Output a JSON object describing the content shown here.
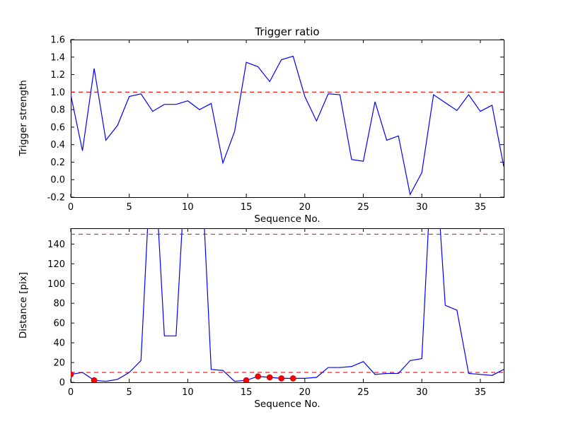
{
  "figure": {
    "background": "#ffffff",
    "colors": {
      "line": "#0000ff",
      "threshold": "#ff0000",
      "marker": "#ff0000",
      "marker_edge": "#990000",
      "axis": "#000000",
      "text": "#000000"
    }
  },
  "chart_data": [
    {
      "type": "line",
      "title": "Trigger ratio",
      "xlabel": "Sequence No.",
      "ylabel": "Trigger strength",
      "xlim": [
        0,
        37
      ],
      "ylim": [
        -0.2,
        1.6
      ],
      "grid": false,
      "legend": null,
      "xticks": [
        0,
        5,
        10,
        15,
        20,
        25,
        30,
        35
      ],
      "xtick_labels": [
        "0",
        "5",
        "10",
        "15",
        "20",
        "25",
        "30",
        "35"
      ],
      "yticks": [
        -0.2,
        0.0,
        0.2,
        0.4,
        0.6,
        0.8,
        1.0,
        1.2,
        1.4,
        1.6
      ],
      "ytick_labels": [
        "-0.2",
        "0.0",
        "0.2",
        "0.4",
        "0.6",
        "0.8",
        "1.0",
        "1.2",
        "1.4",
        "1.6"
      ],
      "thresholds": [
        1.0
      ],
      "x": [
        0,
        1,
        2,
        3,
        4,
        5,
        6,
        7,
        8,
        9,
        10,
        11,
        12,
        13,
        14,
        15,
        16,
        17,
        18,
        19,
        20,
        21,
        22,
        23,
        24,
        25,
        26,
        27,
        28,
        29,
        30,
        31,
        32,
        33,
        34,
        35,
        36,
        37
      ],
      "values": [
        0.97,
        0.33,
        1.27,
        0.45,
        0.62,
        0.95,
        0.98,
        0.78,
        0.86,
        0.86,
        0.9,
        0.8,
        0.87,
        0.19,
        0.55,
        1.34,
        1.29,
        1.12,
        1.37,
        1.41,
        0.95,
        0.67,
        0.98,
        0.97,
        0.23,
        0.21,
        0.89,
        0.45,
        0.5,
        -0.17,
        0.08,
        0.97,
        0.88,
        0.79,
        0.97,
        0.78,
        0.85,
        0.15
      ]
    },
    {
      "type": "line",
      "title": "",
      "xlabel": "Sequence No.",
      "ylabel": "Distance [pix]",
      "xlim": [
        0,
        37
      ],
      "ylim": [
        0,
        156
      ],
      "grid": false,
      "legend": null,
      "xticks": [
        0,
        5,
        10,
        15,
        20,
        25,
        30,
        35
      ],
      "xtick_labels": [
        "0",
        "5",
        "10",
        "15",
        "20",
        "25",
        "30",
        "35"
      ],
      "yticks": [
        0,
        20,
        40,
        60,
        80,
        100,
        120,
        140
      ],
      "ytick_labels": [
        "0",
        "20",
        "40",
        "60",
        "80",
        "100",
        "120",
        "140"
      ],
      "thresholds": [
        150,
        10
      ],
      "x": [
        0,
        1,
        2,
        3,
        4,
        5,
        6,
        7,
        8,
        9,
        10,
        11,
        12,
        13,
        14,
        15,
        16,
        17,
        18,
        19,
        20,
        21,
        22,
        23,
        24,
        25,
        26,
        27,
        28,
        29,
        30,
        31,
        32,
        33,
        34,
        35,
        36,
        37
      ],
      "values": [
        8,
        10,
        2,
        1,
        3,
        10,
        22,
        260,
        47,
        47,
        260,
        260,
        13,
        12,
        1,
        2,
        6,
        5,
        4,
        4,
        4,
        5,
        15,
        15,
        16,
        21,
        8,
        9,
        9,
        22,
        24,
        260,
        78,
        73,
        9,
        8,
        7,
        13
      ],
      "markers": {
        "x": [
          0,
          2,
          15,
          16,
          17,
          18,
          19
        ],
        "y": [
          8,
          2,
          2,
          6,
          5,
          4,
          4
        ]
      }
    }
  ]
}
